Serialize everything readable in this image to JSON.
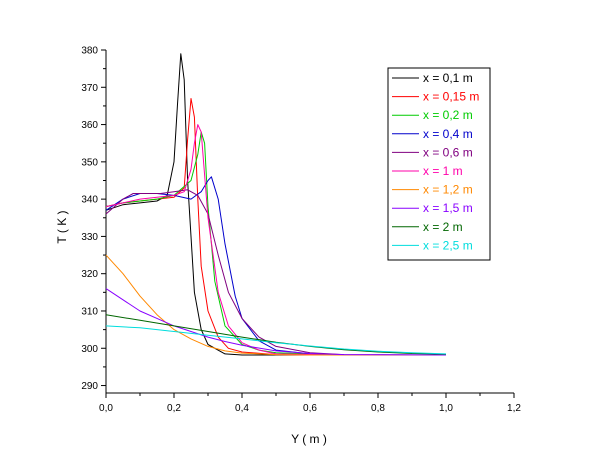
{
  "chart_data": {
    "type": "line",
    "xlabel": "Y ( m )",
    "ylabel": "T ( K )",
    "xlim": [
      0,
      1.2
    ],
    "ylim": [
      288,
      380
    ],
    "x_ticks": [
      "0,0",
      "0,2",
      "0,4",
      "0,6",
      "0,8",
      "1,0",
      "1,2"
    ],
    "y_ticks": [
      "290",
      "300",
      "310",
      "320",
      "330",
      "340",
      "350",
      "360",
      "370",
      "380"
    ],
    "grid": false,
    "legend_position": "top-right",
    "series": [
      {
        "name": "x = 0,1 m",
        "color": "#000000",
        "x": [
          0,
          0.05,
          0.1,
          0.15,
          0.18,
          0.2,
          0.21,
          0.22,
          0.23,
          0.24,
          0.26,
          0.28,
          0.3,
          0.35,
          0.4,
          0.5,
          0.7,
          1.0
        ],
        "y": [
          337,
          338.5,
          339,
          339.5,
          341,
          350,
          365,
          379,
          372,
          345,
          315,
          305,
          301,
          298.5,
          298.2,
          298.2,
          298.2,
          298.2
        ]
      },
      {
        "name": "x = 0,15 m",
        "color": "#ff0000",
        "x": [
          0,
          0.05,
          0.1,
          0.15,
          0.2,
          0.23,
          0.24,
          0.25,
          0.26,
          0.27,
          0.28,
          0.3,
          0.33,
          0.36,
          0.4,
          0.5,
          0.7,
          1.0
        ],
        "y": [
          338,
          339,
          339.5,
          340,
          340.5,
          343,
          356,
          367,
          362,
          340,
          322,
          310,
          303,
          300,
          299,
          298.3,
          298.2,
          298.2
        ]
      },
      {
        "name": "x = 0,2 m",
        "color": "#00cc00",
        "x": [
          0,
          0.05,
          0.1,
          0.15,
          0.2,
          0.25,
          0.27,
          0.28,
          0.29,
          0.3,
          0.32,
          0.35,
          0.4,
          0.45,
          0.5,
          0.7,
          1.0
        ],
        "y": [
          338,
          339,
          339.5,
          340,
          341,
          345,
          352,
          358,
          355,
          338,
          318,
          306,
          301,
          299.5,
          298.8,
          298.2,
          298.2
        ]
      },
      {
        "name": "x = 0,4 m",
        "color": "#0000cc",
        "x": [
          0,
          0.05,
          0.1,
          0.15,
          0.2,
          0.25,
          0.28,
          0.3,
          0.31,
          0.33,
          0.35,
          0.38,
          0.4,
          0.45,
          0.5,
          0.6,
          0.7,
          1.0
        ],
        "y": [
          337,
          340,
          341.5,
          341.5,
          341,
          340,
          342,
          345,
          346,
          340,
          328,
          314,
          308,
          302,
          299.5,
          298.5,
          298.2,
          298.2
        ]
      },
      {
        "name": "x = 0,6 m",
        "color": "#800080",
        "x": [
          0,
          0.05,
          0.08,
          0.12,
          0.16,
          0.2,
          0.24,
          0.27,
          0.3,
          0.33,
          0.36,
          0.4,
          0.45,
          0.5,
          0.6,
          0.7,
          1.0
        ],
        "y": [
          336,
          340,
          341.5,
          341.5,
          341.5,
          342,
          342.5,
          341,
          336,
          325,
          315,
          308,
          303,
          300.5,
          298.8,
          298.3,
          298.2
        ]
      },
      {
        "name": "x = 1 m",
        "color": "#ff00aa",
        "x": [
          0,
          0.05,
          0.1,
          0.15,
          0.2,
          0.23,
          0.25,
          0.26,
          0.27,
          0.28,
          0.3,
          0.33,
          0.36,
          0.4,
          0.45,
          0.5,
          0.7,
          1.0
        ],
        "y": [
          338,
          339,
          340,
          340.5,
          341,
          342,
          348,
          355,
          360,
          358,
          335,
          315,
          306,
          301.5,
          299.5,
          298.5,
          298.2,
          298.2
        ]
      },
      {
        "name": "x = 1,2 m",
        "color": "#ff8800",
        "x": [
          0,
          0.05,
          0.1,
          0.15,
          0.2,
          0.25,
          0.3,
          0.35,
          0.4,
          0.5,
          0.6,
          0.7,
          1.0
        ],
        "y": [
          325,
          320,
          314,
          309,
          305,
          302.5,
          300.5,
          299.3,
          298.7,
          298.3,
          298.2,
          298.2,
          298.2
        ]
      },
      {
        "name": "x = 1,5 m",
        "color": "#8800ff",
        "x": [
          0,
          0.05,
          0.1,
          0.15,
          0.2,
          0.25,
          0.3,
          0.35,
          0.4,
          0.5,
          0.6,
          0.7,
          1.0
        ],
        "y": [
          316,
          313,
          310,
          308,
          306,
          304.5,
          303,
          301.8,
          300.8,
          299.3,
          298.6,
          298.3,
          298.2
        ]
      },
      {
        "name": "x = 2 m",
        "color": "#006600",
        "x": [
          0,
          0.1,
          0.2,
          0.3,
          0.4,
          0.5,
          0.6,
          0.7,
          0.8,
          0.9,
          1.0
        ],
        "y": [
          309,
          307.5,
          306,
          304.5,
          303,
          301.6,
          300.5,
          299.6,
          299,
          298.6,
          298.4
        ]
      },
      {
        "name": "x = 2,5 m",
        "color": "#00dddd",
        "x": [
          0,
          0.1,
          0.2,
          0.3,
          0.4,
          0.5,
          0.6,
          0.7,
          0.8,
          0.9,
          1.0
        ],
        "y": [
          306,
          305.5,
          304.5,
          303.5,
          302.5,
          301.5,
          300.6,
          299.8,
          299.2,
          298.8,
          298.5
        ]
      }
    ]
  }
}
